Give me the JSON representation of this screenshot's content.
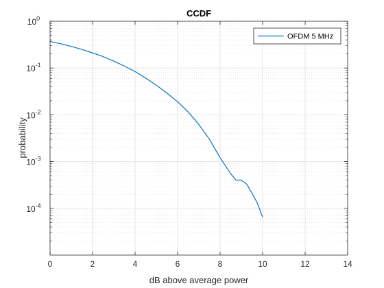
{
  "chart_data": {
    "type": "line",
    "title": "CCDF",
    "xlabel": "dB above average power",
    "ylabel": "probability",
    "xlim": [
      0,
      14
    ],
    "ylim": [
      1e-05,
      1
    ],
    "yscale": "log",
    "grid": true,
    "minor_grid": true,
    "legend_placement": "top-right",
    "x_ticks": [
      "0",
      "2",
      "4",
      "6",
      "8",
      "10",
      "12",
      "14"
    ],
    "y_ticks": [
      {
        "base": "10",
        "exp": "0"
      },
      {
        "base": "10",
        "exp": "-1"
      },
      {
        "base": "10",
        "exp": "-2"
      },
      {
        "base": "10",
        "exp": "-3"
      },
      {
        "base": "10",
        "exp": "-4"
      }
    ],
    "series": [
      {
        "name": "OFDM 5 MHz",
        "color": "#0072BD",
        "x": [
          0,
          0.5,
          1,
          1.5,
          2,
          2.5,
          3,
          3.5,
          4,
          4.5,
          5,
          5.5,
          6,
          6.5,
          7,
          7.5,
          8,
          8.5,
          8.75,
          9,
          9.25,
          9.5,
          9.75,
          10
        ],
        "y": [
          0.37,
          0.33,
          0.29,
          0.25,
          0.21,
          0.175,
          0.14,
          0.11,
          0.084,
          0.061,
          0.043,
          0.029,
          0.019,
          0.0115,
          0.0062,
          0.003,
          0.0012,
          0.00055,
          0.0004,
          0.0004,
          0.00033,
          0.00021,
          0.00013,
          6.5e-05
        ]
      }
    ]
  }
}
